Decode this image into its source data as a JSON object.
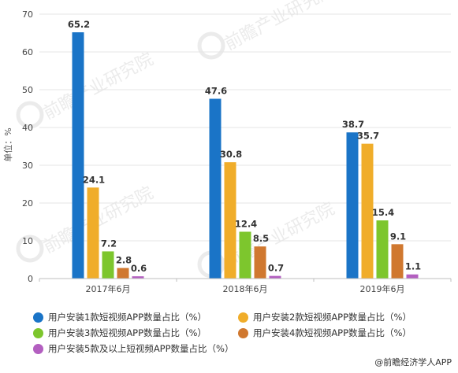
{
  "chart_data": {
    "type": "bar",
    "categories": [
      "2017年6月",
      "2018年6月",
      "2019年6月"
    ],
    "series": [
      {
        "name": "用户安装1款短视频APP数量占比（%）",
        "values": [
          65.2,
          47.6,
          38.7
        ],
        "color": "#1a74c7"
      },
      {
        "name": "用户安装2款短视频APP数量占比（%）",
        "values": [
          24.1,
          30.8,
          35.7
        ],
        "color": "#f0ad2a"
      },
      {
        "name": "用户安装3款短视频APP数量占比（%）",
        "values": [
          7.2,
          12.4,
          15.4
        ],
        "color": "#7dc62d"
      },
      {
        "name": "用户安装4款短视频APP数量占比（%）",
        "values": [
          2.8,
          8.5,
          9.1
        ],
        "color": "#d0782f"
      },
      {
        "name": "用户安装5款及以上短视频APP数量占比（%）",
        "values": [
          0.6,
          0.7,
          1.1
        ],
        "color": "#b35fc0"
      }
    ],
    "ylabel": "单位：%",
    "ylim": [
      0,
      70
    ],
    "yticks": [
      0,
      10,
      20,
      30,
      40,
      50,
      60,
      70
    ],
    "grid": true,
    "legend_position": "bottom"
  },
  "watermark": "前瞻产业研究院",
  "source": "@前瞻经济学人APP"
}
